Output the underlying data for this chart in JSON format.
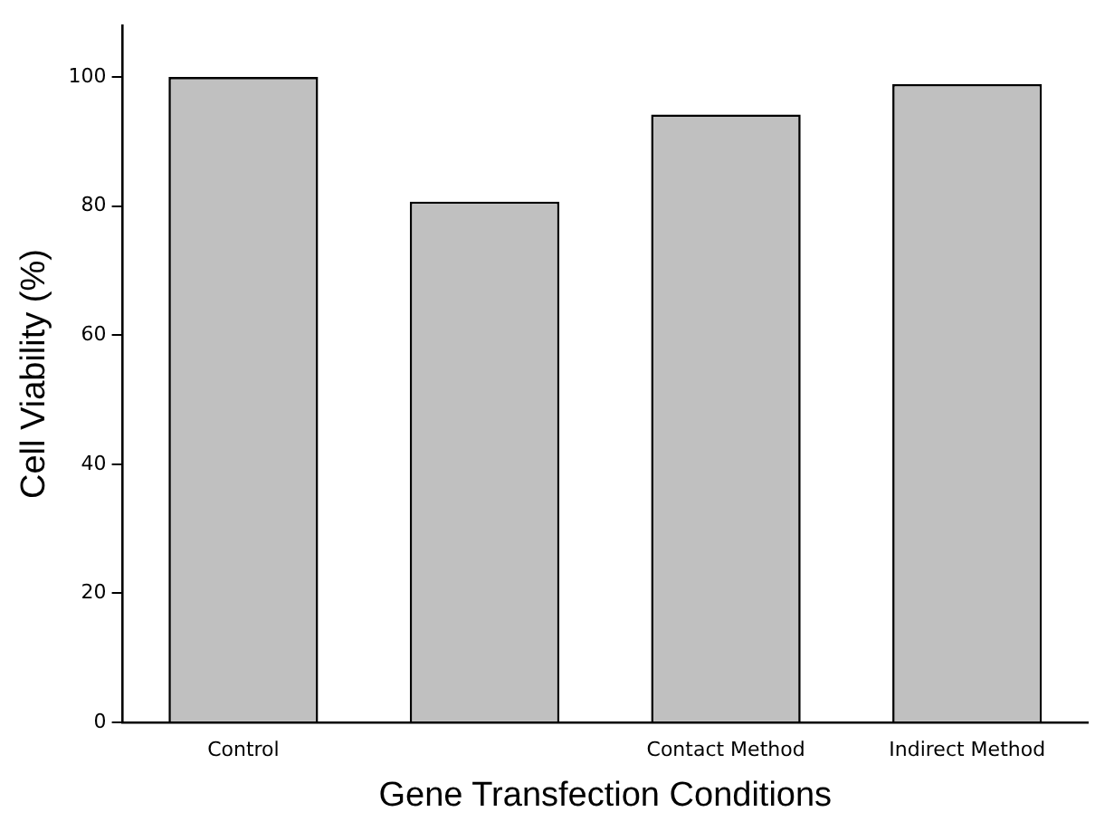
{
  "chart_data": {
    "type": "bar",
    "xlabel": "Gene Transfection Conditions",
    "ylabel": "Cell Viability (%)",
    "categories": [
      "Control",
      null,
      "Contact Method",
      "Indirect Method"
    ],
    "values": [
      100,
      80.7,
      94.2,
      98.9
    ],
    "color": "#c0c0c0",
    "ylim": [
      0,
      108
    ],
    "yticks": [
      0,
      20,
      40,
      60,
      80,
      100
    ],
    "grid": false,
    "legend": false
  }
}
